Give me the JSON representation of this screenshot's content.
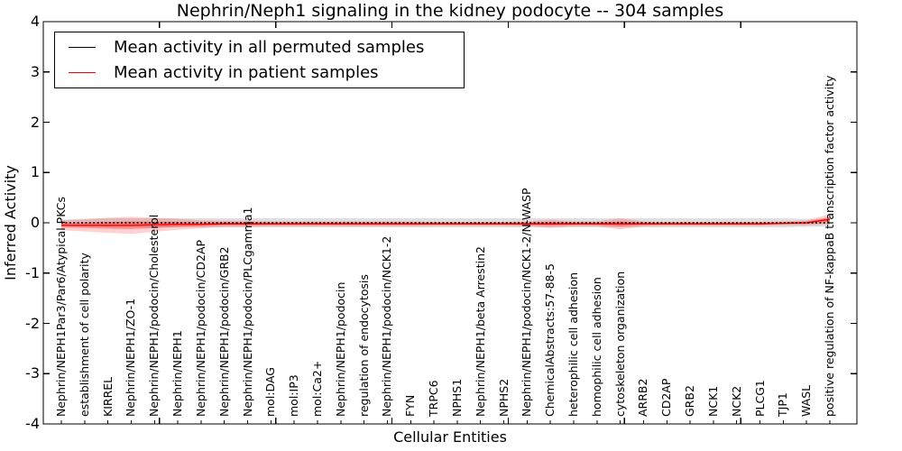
{
  "title": "Nephrin/Neph1 signaling in the kidney podocyte -- 304 samples",
  "legend": {
    "items": [
      {
        "label": "Mean activity in all permuted samples",
        "color": "#000000"
      },
      {
        "label": "Mean activity in patient samples",
        "color": "#ff0000"
      }
    ]
  },
  "axes": {
    "xlabel": "Cellular Entities",
    "ylabel": "Inferred Activity",
    "ytick_labels": [
      "4",
      "3",
      "2",
      "1",
      "0",
      "-1",
      "-2",
      "-3",
      "-4"
    ],
    "ytick_values": [
      4,
      3,
      2,
      1,
      0,
      -1,
      -2,
      -3,
      -4
    ],
    "ylim": [
      -4,
      4
    ]
  },
  "chart_data": {
    "type": "line",
    "title": "Nephrin/Neph1 signaling in the kidney podocyte -- 304 samples",
    "xlabel": "Cellular Entities",
    "ylabel": "Inferred Activity",
    "ylim": [
      -4,
      4
    ],
    "grid": false,
    "legend_position": "upper left",
    "sample_count": 304,
    "categories": [
      "Nephrin/NEPH1Par3/Par6/Atypical PKCs",
      "establishment of cell polarity",
      "KIRREL",
      "Nephrin/NEPH1/ZO-1",
      "Nephrin/NEPH1/podocin/Cholesterol",
      "Nephrin/NEPH1",
      "Nephrin/NEPH1/podocin/CD2AP",
      "Nephrin/NEPH1/podocin/GRB2",
      "Nephrin/NEPH1/podocin/PLCgamma1",
      "mol:DAG",
      "mol:IP3",
      "mol:Ca2+",
      "Nephrin/NEPH1/podocin",
      "regulation of endocytosis",
      "Nephrin/NEPH1/podocin/NCK1-2",
      "FYN",
      "TRPC6",
      "NPHS1",
      "Nephrin/NEPH1/beta Arrestin2",
      "NPHS2",
      "Nephrin/NEPH1/podocin/NCK1-2/N-WASP",
      "ChemicalAbstracts:57-88-5",
      "heterophilic cell adhesion",
      "homophilic cell adhesion",
      "cytoskeleton organization",
      "ARRB2",
      "CD2AP",
      "GRB2",
      "NCK1",
      "NCK2",
      "PLCG1",
      "TJP1",
      "WASL",
      "positive regulation of NF-kappaB transcription factor activity"
    ],
    "series": [
      {
        "name": "Mean activity in all permuted samples",
        "color": "#000000",
        "style": "dotted",
        "band_color": "rgba(110,110,110,0.22)",
        "values": [
          0,
          0,
          0,
          0,
          0,
          0,
          0,
          0,
          0,
          0,
          0,
          0,
          0,
          0,
          0,
          0,
          0,
          0,
          0,
          0,
          0,
          0,
          0,
          0,
          0,
          0,
          0,
          0,
          0,
          0,
          0,
          0,
          0,
          0
        ],
        "band_halfwidth": [
          0.06,
          0.08,
          0.09,
          0.09,
          0.09,
          0.09,
          0.09,
          0.09,
          0.09,
          0.09,
          0.09,
          0.09,
          0.09,
          0.09,
          0.09,
          0.09,
          0.09,
          0.09,
          0.09,
          0.09,
          0.09,
          0.09,
          0.09,
          0.09,
          0.09,
          0.09,
          0.09,
          0.09,
          0.09,
          0.09,
          0.09,
          0.09,
          0.08,
          0.07
        ]
      },
      {
        "name": "Mean activity in patient samples",
        "color": "#ff0000",
        "style": "solid",
        "band_color": "rgba(255,0,0,0.18)",
        "band_inner_color": "rgba(255,0,0,0.30)",
        "values": [
          -0.05,
          -0.05,
          -0.05,
          -0.05,
          -0.04,
          -0.03,
          -0.03,
          -0.02,
          -0.02,
          -0.02,
          -0.02,
          -0.02,
          -0.02,
          -0.02,
          -0.02,
          -0.02,
          -0.02,
          -0.02,
          -0.02,
          -0.02,
          -0.02,
          -0.02,
          -0.02,
          -0.02,
          -0.02,
          -0.02,
          -0.02,
          -0.02,
          -0.02,
          -0.02,
          -0.02,
          -0.01,
          0.0,
          0.07
        ],
        "band_halfwidth": [
          0.1,
          0.12,
          0.15,
          0.17,
          0.14,
          0.11,
          0.08,
          0.06,
          0.06,
          0.05,
          0.05,
          0.05,
          0.05,
          0.05,
          0.05,
          0.05,
          0.04,
          0.04,
          0.04,
          0.04,
          0.05,
          0.08,
          0.05,
          0.05,
          0.11,
          0.05,
          0.04,
          0.04,
          0.04,
          0.04,
          0.04,
          0.04,
          0.05,
          0.1
        ]
      }
    ]
  }
}
